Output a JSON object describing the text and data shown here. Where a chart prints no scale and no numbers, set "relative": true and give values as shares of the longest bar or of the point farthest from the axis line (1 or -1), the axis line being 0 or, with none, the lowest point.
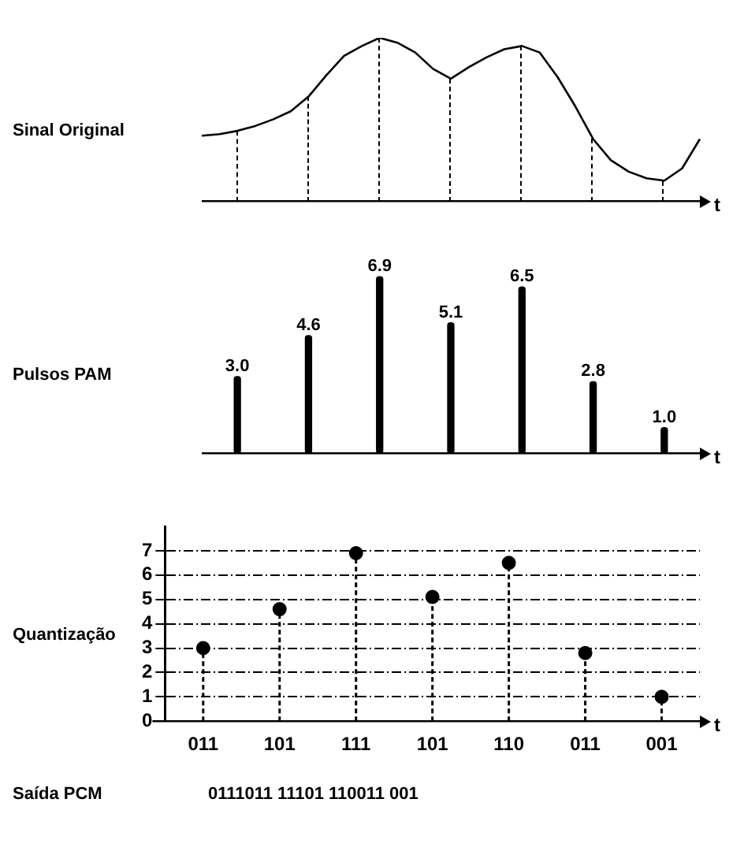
{
  "chart_data": [
    {
      "type": "line",
      "ylabel": "Sinal Original",
      "xlabel": "t",
      "relative": true,
      "categories": [
        null,
        null,
        null,
        null,
        null,
        null,
        null,
        null,
        null,
        null,
        null,
        null,
        null,
        null,
        null,
        null,
        null,
        null,
        null,
        null,
        null,
        null,
        null,
        null,
        null,
        null,
        null,
        null,
        null
      ],
      "color": "#000000",
      "marker": "none",
      "grid": "x",
      "values": [
        0.4,
        0.41,
        0.43,
        0.46,
        0.5,
        0.55,
        0.64,
        0.77,
        0.89,
        0.95,
        1.0,
        0.97,
        0.91,
        0.81,
        0.75,
        0.82,
        0.88,
        0.93,
        0.95,
        0.91,
        0.76,
        0.58,
        0.38,
        0.25,
        0.18,
        0.14,
        0.125,
        0.2,
        0.38
      ]
    },
    {
      "type": "bar",
      "ylabel": "Pulsos PAM",
      "xlabel": "t",
      "color": "#000000",
      "categories": [
        null,
        null,
        null,
        null,
        null,
        null,
        null
      ],
      "values": [
        3.0,
        4.6,
        6.9,
        5.1,
        6.5,
        2.8,
        1.0
      ],
      "value_labels": [
        "3.0",
        "4.6",
        "6.9",
        "5.1",
        "6.5",
        "2.8",
        "1.0"
      ]
    },
    {
      "type": "lollipop",
      "ylabel": "Quantização",
      "xlabel": "t",
      "color": "#000000",
      "marker": "circle",
      "line_style": "dashed",
      "grid": true,
      "categories": [
        "011",
        "101",
        "111",
        "101",
        "110",
        "011",
        "001"
      ],
      "values": [
        3.0,
        4.6,
        6.9,
        5.1,
        6.5,
        2.8,
        1.0
      ],
      "ylim": [
        0,
        8
      ],
      "yticks": [
        0,
        1,
        2,
        3,
        4,
        5,
        6,
        7
      ],
      "annotations": [
        "Saída PCM",
        "0111011 11101 110011 001"
      ]
    }
  ]
}
